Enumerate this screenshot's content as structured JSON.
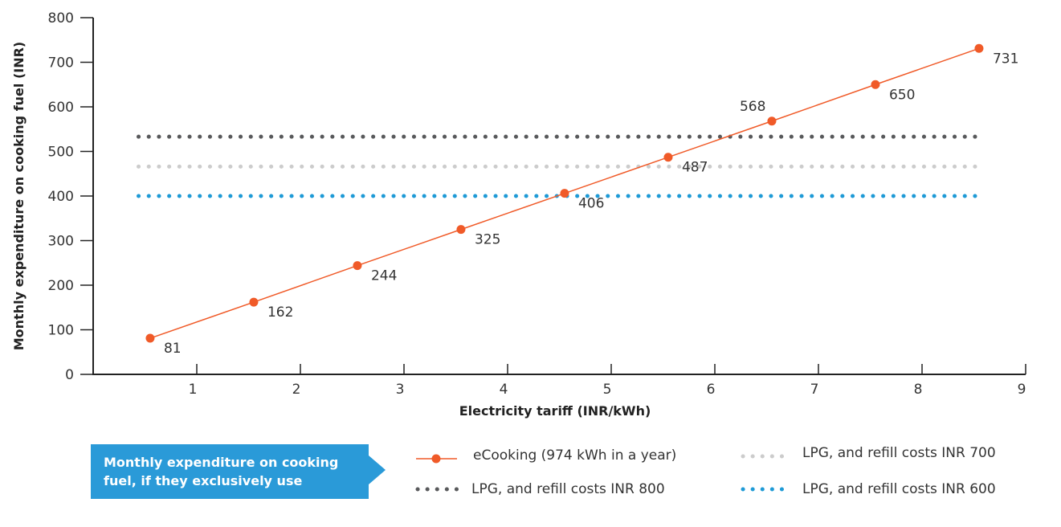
{
  "chart_data": {
    "type": "line",
    "xlabel": "Electricity tariff (INR/kWh)",
    "ylabel": "Monthly expenditure on cooking fuel (INR)",
    "xlim": [
      0,
      9
    ],
    "ylim": [
      0,
      800
    ],
    "x_ticks": [
      1,
      2,
      3,
      4,
      5,
      6,
      7,
      8,
      9
    ],
    "y_ticks": [
      0,
      100,
      200,
      300,
      400,
      500,
      600,
      700,
      800
    ],
    "grid": false,
    "legend_position": "bottom",
    "series": [
      {
        "name": "eCooking (974 kWh in a year)",
        "style": "solid-with-markers",
        "color": "#f05a28",
        "x": [
          0.55,
          1.55,
          2.55,
          3.55,
          4.55,
          5.55,
          6.55,
          7.55,
          8.55
        ],
        "values": [
          81,
          162,
          244,
          325,
          406,
          487,
          568,
          650,
          731
        ],
        "labels": [
          "81",
          "162",
          "244",
          "325",
          "406",
          "487",
          "568",
          "650",
          "731"
        ]
      },
      {
        "name": "LPG, and refill costs INR 800",
        "style": "dotted",
        "color": "#58595b",
        "x": [
          0.5,
          8.5
        ],
        "values": [
          533,
          533
        ]
      },
      {
        "name": "LPG, and refill costs INR 700",
        "style": "dotted",
        "color": "#cccccc",
        "x": [
          0.5,
          8.5
        ],
        "values": [
          466,
          466
        ]
      },
      {
        "name": "LPG, and refill costs INR 600",
        "style": "dotted",
        "color": "#1e9ad6",
        "x": [
          0.5,
          8.5
        ],
        "values": [
          400,
          400
        ]
      }
    ]
  },
  "callout": {
    "line1": "Monthly expenditure on cooking",
    "line2": "fuel, if they exclusively use",
    "color": "#2a9ad8"
  }
}
